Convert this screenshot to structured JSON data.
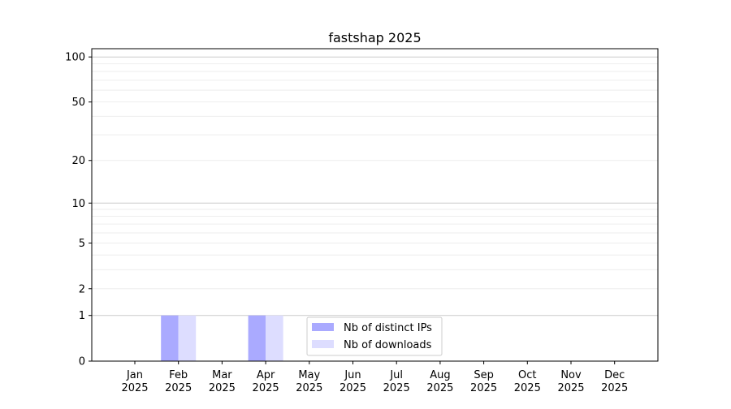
{
  "chart_data": {
    "type": "bar",
    "title": "fastshap 2025",
    "xlabel": "",
    "ylabel": "",
    "y_scale": "symlog",
    "ylim": [
      0,
      113
    ],
    "y_ticks": [
      0,
      1,
      2,
      5,
      10,
      20,
      50,
      100
    ],
    "y_tick_labels": [
      "0",
      "1",
      "2",
      "5",
      "10",
      "20",
      "50",
      "100"
    ],
    "grid": true,
    "categories": [
      "Jan\n2025",
      "Feb\n2025",
      "Mar\n2025",
      "Apr\n2025",
      "May\n2025",
      "Jun\n2025",
      "Jul\n2025",
      "Aug\n2025",
      "Sep\n2025",
      "Oct\n2025",
      "Nov\n2025",
      "Dec\n2025"
    ],
    "series": [
      {
        "name": "Nb of distinct IPs",
        "color": "#aaaaff",
        "values": [
          0,
          1,
          0,
          1,
          0,
          0,
          0,
          0,
          0,
          0,
          0,
          0
        ]
      },
      {
        "name": "Nb of downloads",
        "color": "#ddddff",
        "values": [
          0,
          1,
          0,
          1,
          0,
          0,
          0,
          0,
          0,
          0,
          0,
          0
        ]
      }
    ],
    "legend_position": "bottom-center"
  }
}
